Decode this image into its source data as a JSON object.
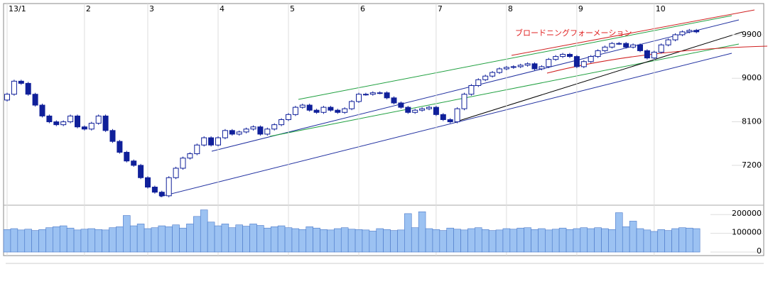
{
  "chart_data": {
    "type": "candlestick",
    "annotation": "ブロードニングフォーメーション",
    "xticks": [
      {
        "value": 0,
        "label": "13/1"
      },
      {
        "value": 11,
        "label": "2"
      },
      {
        "value": 20,
        "label": "3"
      },
      {
        "value": 30,
        "label": "4"
      },
      {
        "value": 40,
        "label": "5"
      },
      {
        "value": 50,
        "label": "6"
      },
      {
        "value": 61,
        "label": "7"
      },
      {
        "value": 71,
        "label": "8"
      },
      {
        "value": 81,
        "label": "9"
      },
      {
        "value": 92,
        "label": "10"
      }
    ],
    "ylim": [
      6420,
      10545
    ],
    "yticks": [
      7200,
      8100,
      9000,
      9900
    ],
    "y2lim": [
      0,
      250000
    ],
    "y2ticks": [
      0,
      100000,
      200000
    ],
    "up_color": "#ffffff",
    "down_color": "#10209a",
    "volume_color": "#9cc2f2",
    "open": [
      8550,
      8670,
      8940,
      8895,
      8670,
      8445,
      8220,
      8100,
      8040,
      8100,
      8220,
      7995,
      7950,
      8070,
      8220,
      7920,
      7695,
      7470,
      7290,
      7200,
      6945,
      6750,
      6645,
      6570,
      6945,
      7140,
      7350,
      7440,
      7620,
      7770,
      7620,
      7770,
      7920,
      7845,
      7890,
      7950,
      7995,
      7845,
      7950,
      8040,
      8145,
      8250,
      8400,
      8445,
      8340,
      8295,
      8400,
      8340,
      8295,
      8370,
      8520,
      8670,
      8670,
      8700,
      8700,
      8595,
      8490,
      8400,
      8295,
      8340,
      8370,
      8400,
      8250,
      8145,
      8100,
      8370,
      8670,
      8850,
      8970,
      9045,
      9120,
      9195,
      9225,
      9240,
      9270,
      9300,
      9195,
      9240,
      9390,
      9450,
      9495,
      9450,
      9240,
      9345,
      9450,
      9570,
      9645,
      9720,
      9720,
      9645,
      9690,
      9570,
      9420,
      9540,
      9690,
      9795,
      9900,
      9960,
      9990
    ],
    "high": [
      8700,
      8970,
      8970,
      8925,
      8700,
      8475,
      8250,
      8130,
      8130,
      8250,
      8250,
      8025,
      8100,
      8250,
      8250,
      7950,
      7725,
      7500,
      7320,
      7230,
      6975,
      6780,
      6675,
      6975,
      7170,
      7380,
      7470,
      7650,
      7800,
      7800,
      7800,
      7950,
      7950,
      7920,
      7980,
      8025,
      8025,
      7980,
      8070,
      8175,
      8280,
      8430,
      8475,
      8475,
      8370,
      8430,
      8430,
      8370,
      8400,
      8550,
      8700,
      8700,
      8730,
      8730,
      8730,
      8625,
      8520,
      8430,
      8370,
      8400,
      8430,
      8430,
      8280,
      8175,
      8400,
      8700,
      8880,
      9000,
      9075,
      9150,
      9225,
      9255,
      9270,
      9300,
      9330,
      9330,
      9270,
      9420,
      9480,
      9525,
      9525,
      9480,
      9375,
      9480,
      9600,
      9675,
      9750,
      9750,
      9750,
      9720,
      9720,
      9600,
      9570,
      9720,
      9825,
      9930,
      9990,
      10020,
      10020
    ],
    "low": [
      8520,
      8640,
      8865,
      8640,
      8415,
      8190,
      8070,
      8010,
      8010,
      8070,
      7965,
      7920,
      7920,
      8040,
      7890,
      7665,
      7440,
      7260,
      7170,
      6915,
      6720,
      6615,
      6540,
      6540,
      6915,
      7110,
      7320,
      7410,
      7590,
      7590,
      7590,
      7740,
      7815,
      7815,
      7860,
      7920,
      7815,
      7815,
      7920,
      8010,
      8115,
      8220,
      8370,
      8310,
      8265,
      8265,
      8310,
      8265,
      8265,
      8340,
      8490,
      8640,
      8640,
      8670,
      8565,
      8460,
      8370,
      8265,
      8265,
      8310,
      8340,
      8220,
      8115,
      8070,
      8070,
      8340,
      8640,
      8820,
      8940,
      9015,
      9090,
      9165,
      9195,
      9210,
      9240,
      9165,
      9165,
      9210,
      9360,
      9420,
      9420,
      9210,
      9210,
      9315,
      9420,
      9540,
      9615,
      9690,
      9615,
      9615,
      9540,
      9390,
      9390,
      9510,
      9660,
      9765,
      9870,
      9930,
      9930
    ],
    "close": [
      8670,
      8940,
      8895,
      8670,
      8445,
      8220,
      8100,
      8040,
      8100,
      8220,
      7995,
      7950,
      8070,
      8220,
      7920,
      7695,
      7470,
      7290,
      7200,
      6945,
      6750,
      6645,
      6570,
      6945,
      7140,
      7350,
      7440,
      7620,
      7770,
      7620,
      7770,
      7920,
      7845,
      7890,
      7950,
      7995,
      7845,
      7950,
      8040,
      8145,
      8250,
      8400,
      8445,
      8340,
      8295,
      8400,
      8340,
      8295,
      8370,
      8520,
      8670,
      8670,
      8700,
      8700,
      8595,
      8490,
      8400,
      8295,
      8340,
      8370,
      8400,
      8250,
      8145,
      8100,
      8370,
      8670,
      8850,
      8970,
      9045,
      9120,
      9195,
      9225,
      9240,
      9270,
      9300,
      9195,
      9240,
      9390,
      9450,
      9495,
      9450,
      9240,
      9345,
      9450,
      9570,
      9645,
      9720,
      9720,
      9645,
      9690,
      9570,
      9420,
      9540,
      9690,
      9795,
      9900,
      9960,
      9990,
      9960
    ],
    "volume": [
      120000,
      125000,
      118000,
      122000,
      115000,
      120000,
      130000,
      135000,
      140000,
      128000,
      118000,
      122000,
      125000,
      120000,
      118000,
      130000,
      135000,
      195000,
      140000,
      150000,
      125000,
      130000,
      140000,
      135000,
      145000,
      128000,
      150000,
      190000,
      225000,
      160000,
      140000,
      150000,
      130000,
      145000,
      138000,
      150000,
      142000,
      128000,
      135000,
      140000,
      130000,
      125000,
      120000,
      135000,
      128000,
      120000,
      118000,
      125000,
      130000,
      122000,
      120000,
      118000,
      112000,
      125000,
      120000,
      115000,
      118000,
      205000,
      130000,
      215000,
      125000,
      120000,
      115000,
      128000,
      122000,
      118000,
      125000,
      130000,
      120000,
      115000,
      118000,
      125000,
      122000,
      128000,
      130000,
      120000,
      125000,
      118000,
      122000,
      128000,
      120000,
      125000,
      130000,
      125000,
      130000,
      125000,
      120000,
      210000,
      135000,
      165000,
      125000,
      118000,
      110000,
      120000,
      115000,
      125000,
      130000,
      128000,
      125000
    ]
  }
}
